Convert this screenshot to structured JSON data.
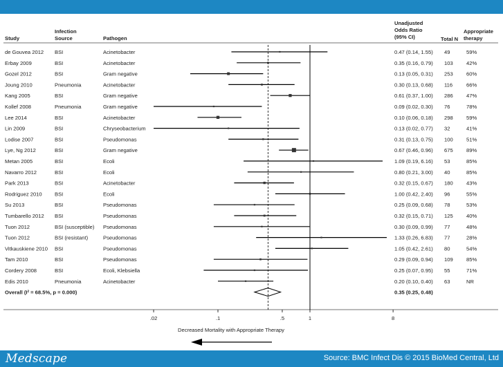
{
  "footer": {
    "brand": "Medscape",
    "source": "Source: BMC Infect Dis © 2015 BioMed Central, Ltd"
  },
  "colors": {
    "banner": "#1d87c3",
    "ink": "#222222"
  },
  "chart_data": {
    "type": "forest",
    "scale": "log",
    "xlim": [
      0.0075,
      8
    ],
    "xlabel": "Decreased Mortality with Appropriate Therapy",
    "ticks": [
      {
        "value": 0.02,
        "label": ".02"
      },
      {
        "value": 0.1,
        "label": ".1"
      },
      {
        "value": 0.5,
        "label": ".5"
      },
      {
        "value": 1,
        "label": "1"
      },
      {
        "value": 8,
        "label": "8"
      }
    ],
    "headers": {
      "study": "Study",
      "source_l1": "Infection",
      "source_l2": "Source",
      "pathogen": "Pathogen",
      "or_l1": "Unadjusted",
      "or_l2": "Odds Ratio",
      "or_l3": "(95% CI)",
      "n": "Total N",
      "appr_l1": "Appropriate",
      "appr_l2": "therapy"
    },
    "rows": [
      {
        "study": "de Gouvea 2012",
        "source": "BSI",
        "pathogen": "Acinetobacter",
        "or": 0.47,
        "lo": 0.14,
        "hi": 1.55,
        "or_text": "0.47 (0.14, 1.55)",
        "n": "49",
        "appr": "59%"
      },
      {
        "study": "Erbay 2009",
        "source": "BSI",
        "pathogen": "Acinetobacter",
        "or": 0.35,
        "lo": 0.16,
        "hi": 0.79,
        "or_text": "0.35 (0.16, 0.79)",
        "n": "103",
        "appr": "42%"
      },
      {
        "study": "Gozel 2012",
        "source": "BSI",
        "pathogen": "Gram negative",
        "or": 0.13,
        "lo": 0.05,
        "hi": 0.31,
        "or_text": "0.13 (0.05, 0.31)",
        "n": "253",
        "appr": "60%"
      },
      {
        "study": "Joung 2010",
        "source": "Pneumonia",
        "pathogen": "Acinetobacter",
        "or": 0.3,
        "lo": 0.13,
        "hi": 0.68,
        "or_text": "0.30 (0.13, 0.68)",
        "n": "116",
        "appr": "66%"
      },
      {
        "study": "Kang 2005",
        "source": "BSI",
        "pathogen": "Gram negative",
        "or": 0.61,
        "lo": 0.37,
        "hi": 1.0,
        "or_text": "0.61 (0.37, 1.00)",
        "n": "286",
        "appr": "47%"
      },
      {
        "study": "Kollef 2008",
        "source": "Pneumonia",
        "pathogen": "Gram negative",
        "or": 0.09,
        "lo": 0.02,
        "hi": 0.3,
        "or_text": "0.09 (0.02, 0.30)",
        "n": "76",
        "appr": "78%"
      },
      {
        "study": "Lee 2014",
        "source": "BSI",
        "pathogen": "Acinetobacter",
        "or": 0.1,
        "lo": 0.06,
        "hi": 0.18,
        "or_text": "0.10 (0.06, 0.18)",
        "n": "298",
        "appr": "59%"
      },
      {
        "study": "Lin 2009",
        "source": "BSI",
        "pathogen": "Chryseobacterium",
        "or": 0.13,
        "lo": 0.02,
        "hi": 0.77,
        "or_text": "0.13 (0.02, 0.77)",
        "n": "32",
        "appr": "41%"
      },
      {
        "study": "Lodise 2007",
        "source": "BSI",
        "pathogen": "Pseudomonas",
        "or": 0.31,
        "lo": 0.13,
        "hi": 0.75,
        "or_text": "0.31 (0.13, 0.75)",
        "n": "100",
        "appr": "51%"
      },
      {
        "study": "Lye, Ng 2012",
        "source": "BSI",
        "pathogen": "Gram negative",
        "or": 0.67,
        "lo": 0.46,
        "hi": 0.96,
        "or_text": "0.67 (0.46, 0.96)",
        "n": "675",
        "appr": "89%"
      },
      {
        "study": "Metan 2005",
        "source": "BSI",
        "pathogen": "Ecoli",
        "or": 1.09,
        "lo": 0.19,
        "hi": 6.16,
        "or_text": "1.09 (0.19, 6.16)",
        "n": "53",
        "appr": "85%"
      },
      {
        "study": "Navarro 2012",
        "source": "BSI",
        "pathogen": "Ecoli",
        "or": 0.8,
        "lo": 0.21,
        "hi": 3.0,
        "or_text": "0.80 (0.21, 3.00)",
        "n": "40",
        "appr": "85%"
      },
      {
        "study": "Park 2013",
        "source": "BSI",
        "pathogen": "Acinetobacter",
        "or": 0.32,
        "lo": 0.15,
        "hi": 0.67,
        "or_text": "0.32 (0.15, 0.67)",
        "n": "180",
        "appr": "43%"
      },
      {
        "study": "Rodriguez 2010",
        "source": "BSI",
        "pathogen": "Ecoli",
        "or": 1.0,
        "lo": 0.42,
        "hi": 2.4,
        "or_text": "1.00 (0.42, 2.40)",
        "n": "96",
        "appr": "55%"
      },
      {
        "study": "Su 2013",
        "source": "BSI",
        "pathogen": "Pseudomonas",
        "or": 0.25,
        "lo": 0.09,
        "hi": 0.68,
        "or_text": "0.25 (0.09, 0.68)",
        "n": "78",
        "appr": "53%"
      },
      {
        "study": "Tumbarello 2012",
        "source": "BSI",
        "pathogen": "Pseudomonas",
        "or": 0.32,
        "lo": 0.15,
        "hi": 0.71,
        "or_text": "0.32 (0.15, 0.71)",
        "n": "125",
        "appr": "40%"
      },
      {
        "study": "Tuon 2012",
        "source": "BSI (susceptible)",
        "pathogen": "Pseudomonas",
        "or": 0.3,
        "lo": 0.09,
        "hi": 0.99,
        "or_text": "0.30 (0.09, 0.99)",
        "n": "77",
        "appr": "48%"
      },
      {
        "study": "Tuon 2012",
        "source": "BSI (resistant)",
        "pathogen": "Pseudomonas",
        "or": 1.33,
        "lo": 0.26,
        "hi": 6.83,
        "or_text": "1.33 (0.26, 6.83)",
        "n": "77",
        "appr": "28%"
      },
      {
        "study": "Vitkauskiene 2010",
        "source": "BSI",
        "pathogen": "Pseudomonas",
        "or": 1.05,
        "lo": 0.42,
        "hi": 2.61,
        "or_text": "1.05 (0.42, 2.61)",
        "n": "80",
        "appr": "54%"
      },
      {
        "study": "Tam 2010",
        "source": "BSI",
        "pathogen": "Pseudomonas",
        "or": 0.29,
        "lo": 0.09,
        "hi": 0.94,
        "or_text": "0.29 (0.09, 0.94)",
        "n": "109",
        "appr": "85%"
      },
      {
        "study": "Cordery 2008",
        "source": "BSI",
        "pathogen": "Ecoli, Klebsiella",
        "or": 0.25,
        "lo": 0.07,
        "hi": 0.95,
        "or_text": "0.25 (0.07, 0.95)",
        "n": "55",
        "appr": "71%"
      },
      {
        "study": "Edis 2010",
        "source": "Pneumonia",
        "pathogen": "Acinetobacter",
        "or": 0.2,
        "lo": 0.1,
        "hi": 0.4,
        "or_text": "0.20 (0.10, 0.40)",
        "n": "63",
        "appr": "NR"
      }
    ],
    "overall": {
      "label": "Overall  (I² = 68.5%, p = 0.000)",
      "or": 0.35,
      "lo": 0.25,
      "hi": 0.48,
      "or_text": "0.35 (0.25, 0.48)"
    }
  }
}
